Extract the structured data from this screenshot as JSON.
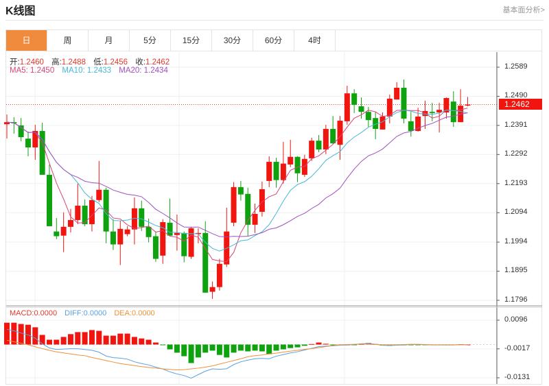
{
  "header": {
    "title": "K线图",
    "fundamental_link": "基本面分析>"
  },
  "tabs": [
    {
      "label": "日",
      "active": true
    },
    {
      "label": "周"
    },
    {
      "label": "月"
    },
    {
      "label": "5分"
    },
    {
      "label": "15分"
    },
    {
      "label": "30分"
    },
    {
      "label": "60分"
    },
    {
      "label": "4时"
    }
  ],
  "ohlc_info": {
    "open_label": "开:",
    "open": "1.2460",
    "high_label": "高:",
    "high": "1.2488",
    "low_label": "低:",
    "low": "1.2456",
    "close_label": "收:",
    "close": "1.2462"
  },
  "ma_info": {
    "ma5": "MA5: 1.2450",
    "ma10": "MA10: 1.2433",
    "ma20": "MA20: 1.2434"
  },
  "macd_info": {
    "macd": "MACD:0.0000",
    "diff": "DIFF:0.0000",
    "dea": "DEA:0.0000"
  },
  "current_price": "1.2462",
  "colors": {
    "up": "#f0150f",
    "down": "#0ea30e",
    "ma5": "#d6457a",
    "ma10": "#45b8d8",
    "ma20": "#a050c0",
    "diff": "#5aa0e0",
    "dea": "#f0903a",
    "accent": "#f08a3c"
  },
  "chart_data": {
    "type": "candlestick",
    "price_ticks": [
      "1.2589",
      "1.2490",
      "1.2391",
      "1.2292",
      "1.2193",
      "1.2094",
      "1.1994",
      "1.1895",
      "1.1796"
    ],
    "price_range": [
      1.1796,
      1.2589
    ],
    "macd_ticks": [
      "0.0096",
      "-0.0017",
      "-0.0131"
    ],
    "macd_range": [
      -0.0131,
      0.0096
    ],
    "ohlc": [
      [
        1.2395,
        1.2428,
        1.2346,
        1.2402
      ],
      [
        1.2402,
        1.2419,
        1.2363,
        1.2398
      ],
      [
        1.2391,
        1.2416,
        1.2337,
        1.2351
      ],
      [
        1.2346,
        1.237,
        1.2286,
        1.2316
      ],
      [
        1.2316,
        1.2393,
        1.2274,
        1.2372
      ],
      [
        1.2372,
        1.24,
        1.2223,
        1.2223
      ],
      [
        1.2223,
        1.2258,
        1.2048,
        1.2048
      ],
      [
        1.203,
        1.2076,
        1.2004,
        1.2014
      ],
      [
        1.2016,
        1.2095,
        1.196,
        1.2046
      ],
      [
        1.2046,
        1.2107,
        1.2027,
        1.2069
      ],
      [
        1.2069,
        1.2193,
        1.2055,
        1.2118
      ],
      [
        1.2118,
        1.2139,
        1.2048,
        1.2055
      ],
      [
        1.2055,
        1.2151,
        1.203,
        1.2137
      ],
      [
        1.2137,
        1.227,
        1.213,
        1.2172
      ],
      [
        1.2172,
        1.2179,
        1.199,
        1.203
      ],
      [
        1.203,
        1.2072,
        1.1967,
        1.1986
      ],
      [
        1.1986,
        1.2067,
        1.1916,
        1.2039
      ],
      [
        1.2021,
        1.2048,
        1.2014,
        1.2037
      ],
      [
        1.2037,
        1.2146,
        1.1986,
        1.2109
      ],
      [
        1.2109,
        1.2135,
        1.2032,
        1.2046
      ],
      [
        1.2046,
        1.2074,
        1.1993,
        1.2011
      ],
      [
        1.2014,
        1.203,
        1.1927,
        1.1937
      ],
      [
        1.1948,
        1.2072,
        1.192,
        1.2062
      ],
      [
        1.206,
        1.2142,
        1.2014,
        1.2016
      ],
      [
        1.2018,
        1.2088,
        1.1965,
        1.2025
      ],
      [
        1.2025,
        1.203,
        1.1925,
        1.1946
      ],
      [
        1.1944,
        1.2046,
        1.1937,
        1.2041
      ],
      [
        1.2021,
        1.2041,
        1.199,
        1.2025
      ],
      [
        1.2025,
        1.2065,
        1.1822,
        1.1822
      ],
      [
        1.1825,
        1.186,
        1.1801,
        1.1841
      ],
      [
        1.1841,
        1.1937,
        1.1829,
        1.192
      ],
      [
        1.1918,
        1.2111,
        1.1909,
        1.203
      ],
      [
        1.206,
        1.2198,
        1.2048,
        1.2181
      ],
      [
        1.2181,
        1.2202,
        1.2135,
        1.2156
      ],
      [
        1.2158,
        1.2179,
        1.2014,
        1.2053
      ],
      [
        1.2053,
        1.2125,
        1.2025,
        1.209
      ],
      [
        1.2097,
        1.22,
        1.2081,
        1.2174
      ],
      [
        1.2202,
        1.2286,
        1.2181,
        1.2267
      ],
      [
        1.2267,
        1.2281,
        1.2179,
        1.2205
      ],
      [
        1.2205,
        1.2335,
        1.2193,
        1.2261
      ],
      [
        1.2258,
        1.2342,
        1.2249,
        1.2284
      ],
      [
        1.2284,
        1.2286,
        1.2198,
        1.2228
      ],
      [
        1.2223,
        1.2291,
        1.2216,
        1.2277
      ],
      [
        1.2279,
        1.2349,
        1.227,
        1.2339
      ],
      [
        1.2339,
        1.2358,
        1.23,
        1.2309
      ],
      [
        1.2309,
        1.2393,
        1.2293,
        1.2379
      ],
      [
        1.2379,
        1.2423,
        1.2328,
        1.233
      ],
      [
        1.2325,
        1.2423,
        1.2274,
        1.2407
      ],
      [
        1.2405,
        1.2526,
        1.2393,
        1.25
      ],
      [
        1.25,
        1.2514,
        1.2433,
        1.2461
      ],
      [
        1.2456,
        1.2486,
        1.2414,
        1.2437
      ],
      [
        1.2437,
        1.2454,
        1.2386,
        1.2409
      ],
      [
        1.2416,
        1.2437,
        1.2344,
        1.2379
      ],
      [
        1.2377,
        1.2435,
        1.2377,
        1.2421
      ],
      [
        1.2421,
        1.2496,
        1.2398,
        1.2482
      ],
      [
        1.2479,
        1.2538,
        1.2479,
        1.2519
      ],
      [
        1.2519,
        1.2547,
        1.2398,
        1.2414
      ],
      [
        1.2405,
        1.2437,
        1.2353,
        1.2372
      ],
      [
        1.2372,
        1.2451,
        1.237,
        1.2421
      ],
      [
        1.2423,
        1.2475,
        1.2379,
        1.244
      ],
      [
        1.2437,
        1.2468,
        1.2405,
        1.2433
      ],
      [
        1.2435,
        1.2468,
        1.2367,
        1.2444
      ],
      [
        1.2435,
        1.2486,
        1.2414,
        1.2484
      ],
      [
        1.2472,
        1.2507,
        1.2386,
        1.2402
      ],
      [
        1.2402,
        1.2514,
        1.2402,
        1.2458
      ],
      [
        1.246,
        1.2488,
        1.2456,
        1.2462
      ]
    ],
    "macd_hist": [
      0.0086,
      0.0086,
      0.0081,
      0.0078,
      0.0068,
      0.0038,
      0.0019,
      0.0019,
      0.003,
      0.0041,
      0.0049,
      0.0049,
      0.0057,
      0.0054,
      0.0035,
      0.0035,
      0.0043,
      0.0043,
      0.003,
      0.0024,
      0.0019,
      0.0008,
      -0.0001,
      -0.0019,
      -0.0032,
      -0.0046,
      -0.0073,
      -0.0051,
      -0.0032,
      -0.0024,
      -0.0041,
      -0.0051,
      -0.0032,
      -0.0024,
      -0.0027,
      -0.0024,
      -0.0027,
      -0.0038,
      -0.0024,
      -0.0019,
      -0.0014,
      -0.0011,
      -0.0005,
      0.0002,
      0.0008,
      0.0003,
      -0.0002,
      -0.0003,
      -0.0003,
      -0.0002,
      0.0002,
      0.0006,
      0.0002,
      -0.0004,
      -0.0005,
      -0.0003,
      -0.0003,
      -0.0002,
      -0.0002,
      -0.0001,
      -0.0001,
      -0.0001,
      -0.0002,
      -0.0001,
      0.0001,
      0.0
    ],
    "dea": [
      0.0017,
      0.0011,
      0.0005,
      -0.0001,
      -0.0009,
      -0.0016,
      -0.0023,
      -0.0029,
      -0.0033,
      -0.0037,
      -0.0041,
      -0.0044,
      -0.0051,
      -0.0057,
      -0.0063,
      -0.0069,
      -0.0075,
      -0.0079,
      -0.0083,
      -0.0087,
      -0.009,
      -0.0093,
      -0.0096,
      -0.0098,
      -0.01,
      -0.0099,
      -0.0096,
      -0.0093,
      -0.0089,
      -0.0084,
      -0.0077,
      -0.007,
      -0.0063,
      -0.0056,
      -0.0048,
      -0.0044,
      -0.0041,
      -0.0037,
      -0.0034,
      -0.003,
      -0.0026,
      -0.0023,
      -0.0019,
      -0.0016,
      -0.0012,
      -0.0008,
      -0.0004,
      -0.0001,
      0.0,
      0.0001,
      0.0002,
      0.0001,
      0.0,
      -0.0001,
      -0.0001,
      -0.0001,
      0.0,
      0.0001,
      0.0001,
      0.0,
      -0.0001,
      -0.0001,
      -0.0001,
      -0.0001,
      -0.0001,
      -0.0001
    ]
  }
}
